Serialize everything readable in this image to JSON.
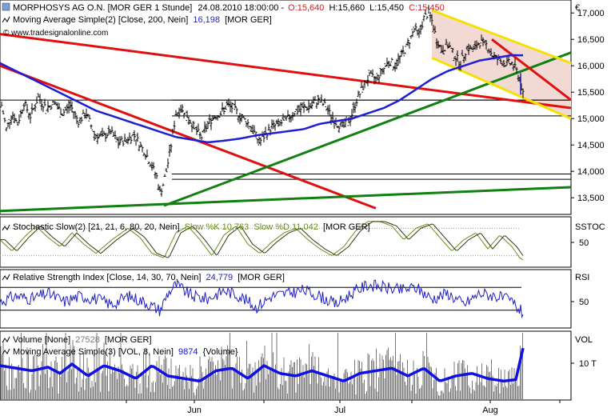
{
  "header": {
    "line1": {
      "symbol": "MORPHOSYS AG O.N. [MOR GER  1 Stunde]",
      "datetime": "24.08.2010 18:00:00 -",
      "open": "O:15,640",
      "high": "H:15,660",
      "low": "L:15,450",
      "close": "C:15,450"
    },
    "line2": {
      "label": "Moving Average Simple(2) [Close, 200, Nein]",
      "value": "16,198",
      "tail": "[MOR GER]"
    },
    "copyright": "© www.tradesignalonline.com"
  },
  "currency_label": "€",
  "panels": {
    "stoch": {
      "label": "Stochastic Slow(2) [21, 21, 6, 80, 20, Nein]",
      "k": "Slow %K 10,763",
      "d": "Slow %D 11,042",
      "tail": "[MOR GER]",
      "axis_title": "SSTOC",
      "tick": "50"
    },
    "rsi": {
      "label": "Relative Strength Index [Close, 14, 30, 70, Nein]",
      "value": "24,779",
      "tail": "[MOR GER]",
      "axis_title": "RSI",
      "tick": "50"
    },
    "vol": {
      "label1": "Volume [None]",
      "value1": "27528",
      "tail1": "[MOR GER]",
      "label2": "Moving Average Simple(3) [VOL, 8, Nein]",
      "value2": "9874",
      "tail2": "{Volume}",
      "axis_title": "VOL",
      "tick": "10 T"
    }
  },
  "colors": {
    "price": "#000000",
    "ma200": "#1e1ed2",
    "trend_red": "#e01010",
    "trend_green": "#108010",
    "channel_yellow": "#f5e100",
    "channel_fill": "#f3d9d3",
    "stoch_line": "#6a8a1a",
    "rsi_line": "#2020c0",
    "vol_bar": "#7a7a7a",
    "vol_ma": "#1010e0",
    "ohlc_red": "#d02020",
    "ohlc_blue": "#2020c0"
  },
  "chart_data": [
    {
      "type": "line",
      "name": "price",
      "x_ticks": [
        "Jun",
        "Jul",
        "Aug"
      ],
      "y_ticks": [
        "13,500",
        "14,000",
        "14,500",
        "15,000",
        "15,500",
        "16,000",
        "16,500",
        "17,000"
      ],
      "ylim": [
        13200,
        17200
      ],
      "close_path": [
        [
          0,
          15400
        ],
        [
          8,
          14800
        ],
        [
          15,
          15100
        ],
        [
          22,
          14900
        ],
        [
          30,
          15300
        ],
        [
          38,
          15050
        ],
        [
          48,
          15400
        ],
        [
          58,
          15200
        ],
        [
          68,
          15300
        ],
        [
          78,
          15100
        ],
        [
          88,
          15250
        ],
        [
          98,
          14950
        ],
        [
          108,
          15100
        ],
        [
          118,
          14700
        ],
        [
          128,
          14650
        ],
        [
          138,
          14750
        ],
        [
          148,
          14550
        ],
        [
          158,
          14600
        ],
        [
          168,
          14700
        ],
        [
          175,
          14500
        ],
        [
          182,
          14350
        ],
        [
          190,
          14100
        ],
        [
          196,
          13900
        ],
        [
          200,
          13600
        ],
        [
          204,
          13750
        ],
        [
          208,
          14000
        ],
        [
          214,
          14500
        ],
        [
          220,
          15100
        ],
        [
          228,
          15200
        ],
        [
          236,
          15000
        ],
        [
          244,
          14800
        ],
        [
          252,
          14650
        ],
        [
          260,
          14900
        ],
        [
          268,
          15050
        ],
        [
          276,
          15100
        ],
        [
          284,
          15250
        ],
        [
          292,
          15200
        ],
        [
          300,
          15050
        ],
        [
          308,
          14950
        ],
        [
          316,
          14800
        ],
        [
          324,
          14550
        ],
        [
          332,
          14700
        ],
        [
          340,
          14850
        ],
        [
          350,
          14900
        ],
        [
          360,
          15000
        ],
        [
          370,
          15150
        ],
        [
          380,
          15200
        ],
        [
          390,
          15250
        ],
        [
          398,
          15350
        ],
        [
          406,
          15250
        ],
        [
          414,
          15050
        ],
        [
          422,
          14900
        ],
        [
          430,
          14850
        ],
        [
          438,
          15000
        ],
        [
          446,
          15350
        ],
        [
          454,
          15600
        ],
        [
          462,
          15800
        ],
        [
          470,
          15750
        ],
        [
          478,
          15900
        ],
        [
          486,
          16100
        ],
        [
          494,
          16000
        ],
        [
          502,
          16200
        ],
        [
          510,
          16400
        ],
        [
          518,
          16700
        ],
        [
          524,
          16600
        ],
        [
          530,
          16900
        ],
        [
          536,
          17000
        ],
        [
          540,
          16850
        ],
        [
          546,
          16500
        ],
        [
          552,
          16300
        ],
        [
          560,
          16400
        ],
        [
          568,
          16200
        ],
        [
          576,
          16050
        ],
        [
          584,
          16350
        ],
        [
          592,
          16300
        ],
        [
          600,
          16450
        ],
        [
          608,
          16400
        ],
        [
          616,
          16200
        ],
        [
          624,
          16100
        ],
        [
          632,
          16050
        ],
        [
          640,
          16050
        ],
        [
          646,
          15900
        ],
        [
          650,
          15750
        ],
        [
          654,
          15450
        ]
      ],
      "ma200_path": [
        [
          0,
          16050
        ],
        [
          20,
          15900
        ],
        [
          40,
          15750
        ],
        [
          60,
          15600
        ],
        [
          80,
          15450
        ],
        [
          100,
          15300
        ],
        [
          120,
          15150
        ],
        [
          140,
          15050
        ],
        [
          160,
          14950
        ],
        [
          180,
          14850
        ],
        [
          200,
          14750
        ],
        [
          220,
          14650
        ],
        [
          240,
          14600
        ],
        [
          260,
          14550
        ],
        [
          280,
          14580
        ],
        [
          300,
          14620
        ],
        [
          320,
          14680
        ],
        [
          340,
          14720
        ],
        [
          360,
          14760
        ],
        [
          380,
          14800
        ],
        [
          400,
          14900
        ],
        [
          420,
          14950
        ],
        [
          440,
          15000
        ],
        [
          460,
          15100
        ],
        [
          480,
          15200
        ],
        [
          500,
          15350
        ],
        [
          520,
          15550
        ],
        [
          540,
          15750
        ],
        [
          560,
          15900
        ],
        [
          580,
          16000
        ],
        [
          600,
          16100
        ],
        [
          620,
          16150
        ],
        [
          640,
          16200
        ],
        [
          654,
          16198
        ]
      ],
      "trendlines": [
        {
          "color": "trend_red",
          "from": [
            0,
            16600
          ],
          "to": [
            714,
            15200
          ]
        },
        {
          "color": "trend_red",
          "from": [
            0,
            16000
          ],
          "to": [
            470,
            13300
          ]
        },
        {
          "color": "trend_green",
          "from": [
            205,
            13350
          ],
          "to": [
            714,
            16250
          ]
        },
        {
          "color": "trend_green",
          "from": [
            0,
            13250
          ],
          "to": [
            714,
            13700
          ]
        },
        {
          "color": "trend_red",
          "from": [
            615,
            16500
          ],
          "to": [
            714,
            15350
          ]
        }
      ],
      "horizontal_levels": [
        15350,
        15050,
        13950,
        13850
      ]
    },
    {
      "type": "line",
      "name": "stochastic",
      "ylim": [
        0,
        100
      ],
      "y_ticks": [
        "50"
      ],
      "k_path": [
        [
          0,
          55
        ],
        [
          15,
          30
        ],
        [
          30,
          60
        ],
        [
          45,
          85
        ],
        [
          60,
          60
        ],
        [
          75,
          40
        ],
        [
          90,
          70
        ],
        [
          105,
          45
        ],
        [
          120,
          25
        ],
        [
          140,
          55
        ],
        [
          160,
          80
        ],
        [
          175,
          60
        ],
        [
          190,
          25
        ],
        [
          205,
          15
        ],
        [
          220,
          70
        ],
        [
          235,
          85
        ],
        [
          250,
          55
        ],
        [
          265,
          20
        ],
        [
          280,
          65
        ],
        [
          295,
          85
        ],
        [
          310,
          45
        ],
        [
          325,
          25
        ],
        [
          340,
          50
        ],
        [
          355,
          70
        ],
        [
          370,
          80
        ],
        [
          385,
          55
        ],
        [
          400,
          35
        ],
        [
          415,
          20
        ],
        [
          430,
          40
        ],
        [
          445,
          75
        ],
        [
          460,
          95
        ],
        [
          475,
          95
        ],
        [
          490,
          85
        ],
        [
          505,
          55
        ],
        [
          520,
          80
        ],
        [
          535,
          90
        ],
        [
          550,
          60
        ],
        [
          565,
          30
        ],
        [
          580,
          55
        ],
        [
          595,
          70
        ],
        [
          610,
          35
        ],
        [
          625,
          65
        ],
        [
          640,
          40
        ],
        [
          650,
          15
        ],
        [
          654,
          11
        ]
      ]
    },
    {
      "type": "line",
      "name": "rsi",
      "ylim": [
        0,
        100
      ],
      "y_ticks": [
        "50"
      ],
      "levels": [
        30,
        70
      ],
      "path": [
        [
          0,
          45
        ],
        [
          20,
          55
        ],
        [
          40,
          50
        ],
        [
          60,
          60
        ],
        [
          80,
          45
        ],
        [
          100,
          55
        ],
        [
          120,
          50
        ],
        [
          140,
          40
        ],
        [
          160,
          55
        ],
        [
          180,
          45
        ],
        [
          200,
          30
        ],
        [
          210,
          60
        ],
        [
          220,
          75
        ],
        [
          240,
          55
        ],
        [
          260,
          50
        ],
        [
          280,
          65
        ],
        [
          300,
          55
        ],
        [
          320,
          35
        ],
        [
          340,
          55
        ],
        [
          360,
          60
        ],
        [
          380,
          65
        ],
        [
          400,
          55
        ],
        [
          420,
          40
        ],
        [
          440,
          60
        ],
        [
          460,
          75
        ],
        [
          480,
          70
        ],
        [
          500,
          65
        ],
        [
          520,
          70
        ],
        [
          540,
          50
        ],
        [
          560,
          60
        ],
        [
          580,
          40
        ],
        [
          600,
          60
        ],
        [
          620,
          55
        ],
        [
          640,
          45
        ],
        [
          650,
          30
        ],
        [
          654,
          25
        ]
      ]
    },
    {
      "type": "bar",
      "name": "volume",
      "ylim": [
        0,
        13000
      ],
      "y_ticks": [
        "10 T"
      ],
      "ma_path": [
        [
          0,
          6500
        ],
        [
          20,
          6000
        ],
        [
          40,
          5500
        ],
        [
          60,
          6200
        ],
        [
          75,
          5000
        ],
        [
          90,
          6800
        ],
        [
          110,
          4500
        ],
        [
          130,
          6500
        ],
        [
          150,
          5500
        ],
        [
          170,
          4000
        ],
        [
          190,
          6500
        ],
        [
          210,
          4500
        ],
        [
          230,
          4000
        ],
        [
          250,
          3500
        ],
        [
          270,
          5500
        ],
        [
          290,
          6000
        ],
        [
          310,
          4000
        ],
        [
          330,
          6500
        ],
        [
          350,
          5000
        ],
        [
          370,
          4500
        ],
        [
          390,
          5500
        ],
        [
          410,
          4500
        ],
        [
          430,
          3500
        ],
        [
          450,
          5000
        ],
        [
          470,
          5500
        ],
        [
          490,
          6000
        ],
        [
          510,
          4500
        ],
        [
          530,
          6000
        ],
        [
          550,
          3500
        ],
        [
          570,
          4500
        ],
        [
          590,
          5000
        ],
        [
          610,
          4000
        ],
        [
          630,
          3500
        ],
        [
          645,
          3800
        ],
        [
          654,
          9874
        ]
      ]
    }
  ]
}
